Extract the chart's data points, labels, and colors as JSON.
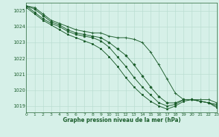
{
  "title": "Graphe pression niveau de la mer (hPa)",
  "bg_color": "#d6f0e8",
  "grid_color": "#b8ddd0",
  "line_color": "#1a5c2a",
  "xlim": [
    0,
    23
  ],
  "ylim": [
    1018.6,
    1025.5
  ],
  "yticks": [
    1019,
    1020,
    1021,
    1022,
    1023,
    1024,
    1025
  ],
  "xticks": [
    0,
    1,
    2,
    3,
    4,
    5,
    6,
    7,
    8,
    9,
    10,
    11,
    12,
    13,
    14,
    15,
    16,
    17,
    18,
    19,
    20,
    21,
    22,
    23
  ],
  "series": [
    [
      1025.3,
      1025.2,
      1024.8,
      1024.4,
      1024.2,
      1024.0,
      1023.8,
      1023.7,
      1023.6,
      1023.6,
      1023.4,
      1023.3,
      1023.3,
      1023.2,
      1023.0,
      1022.4,
      1021.6,
      1020.7,
      1019.8,
      1019.4,
      1019.4,
      1019.4,
      1019.4,
      1019.2
    ],
    [
      1025.3,
      1025.1,
      1024.7,
      1024.3,
      1024.1,
      1023.8,
      1023.6,
      1023.5,
      1023.4,
      1023.3,
      1023.0,
      1022.6,
      1022.2,
      1021.6,
      1020.9,
      1020.2,
      1019.6,
      1019.2,
      1019.2,
      1019.4,
      1019.4,
      1019.3,
      1019.2,
      1019.1
    ],
    [
      1025.3,
      1024.9,
      1024.5,
      1024.2,
      1024.0,
      1023.7,
      1023.5,
      1023.4,
      1023.3,
      1023.1,
      1022.7,
      1022.1,
      1021.5,
      1020.8,
      1020.2,
      1019.7,
      1019.2,
      1019.0,
      1019.1,
      1019.4,
      1019.4,
      1019.3,
      1019.2,
      1019.0
    ],
    [
      1025.2,
      1024.8,
      1024.4,
      1024.1,
      1023.8,
      1023.5,
      1023.3,
      1023.1,
      1022.9,
      1022.6,
      1022.1,
      1021.5,
      1020.8,
      1020.2,
      1019.7,
      1019.3,
      1019.0,
      1018.8,
      1019.0,
      1019.3,
      1019.4,
      1019.3,
      1019.2,
      1018.9
    ]
  ]
}
